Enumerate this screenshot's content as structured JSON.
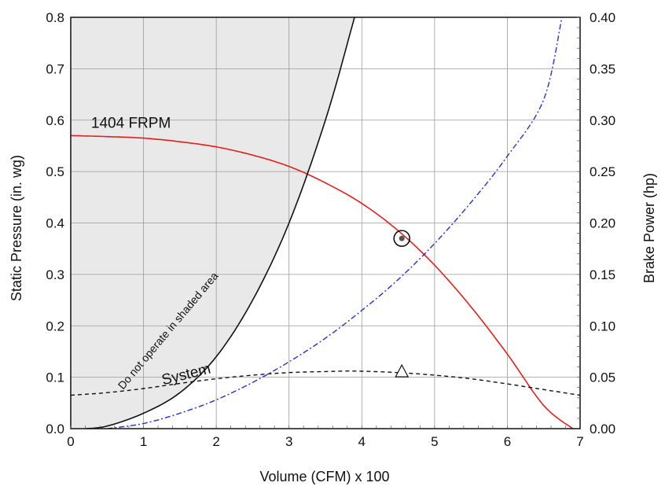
{
  "chart_data": {
    "type": "line",
    "title": "",
    "xlabel": "Volume (CFM) x 100",
    "ylabel": "Static Pressure (in. wg)",
    "y2label": "Brake Power (hp)",
    "xlim": [
      0,
      7
    ],
    "ylim": [
      0,
      0.8
    ],
    "y2lim": [
      0,
      0.4
    ],
    "grid": true,
    "x_ticks": [
      "0",
      "1",
      "2",
      "3",
      "4",
      "5",
      "6",
      "7"
    ],
    "y_ticks": [
      "0.0",
      "0.1",
      "0.2",
      "0.3",
      "0.4",
      "0.5",
      "0.6",
      "0.7",
      "0.8"
    ],
    "y2_ticks": [
      "0.00",
      "0.05",
      "0.10",
      "0.15",
      "0.20",
      "0.25",
      "0.30",
      "0.35",
      "0.40"
    ],
    "series": [
      {
        "name": "1404 FRPM",
        "axis": "left",
        "color": "#e0201b",
        "style": "solid",
        "x": [
          0,
          0.5,
          1,
          1.5,
          2,
          2.5,
          3,
          3.5,
          4,
          4.5,
          5,
          5.5,
          6,
          6.5,
          6.9
        ],
        "y": [
          0.57,
          0.568,
          0.565,
          0.558,
          0.548,
          0.532,
          0.51,
          0.478,
          0.438,
          0.385,
          0.318,
          0.237,
          0.145,
          0.045,
          0.0
        ]
      },
      {
        "name": "Brake Power",
        "axis": "right",
        "color": "#2233cc",
        "style": "dash-dot",
        "x": [
          0.5,
          1,
          1.5,
          2,
          2.5,
          3,
          3.5,
          4,
          4.5,
          5,
          5.5,
          6,
          6.5,
          6.75
        ],
        "y": [
          0.0,
          0.005,
          0.015,
          0.028,
          0.045,
          0.065,
          0.088,
          0.115,
          0.145,
          0.18,
          0.22,
          0.265,
          0.32,
          0.4
        ]
      },
      {
        "name": "System",
        "axis": "left",
        "color": "#111111",
        "style": "dashed",
        "x": [
          0,
          0.5,
          1,
          1.5,
          2,
          2.5,
          3,
          3.5,
          3.9,
          4.5,
          5,
          5.5,
          6,
          6.5,
          7
        ],
        "y": [
          0.065,
          0.07,
          0.078,
          0.088,
          0.097,
          0.104,
          0.109,
          0.111,
          0.112,
          0.109,
          0.104,
          0.097,
          0.087,
          0.076,
          0.065
        ]
      },
      {
        "name": "Do not operate boundary",
        "axis": "left",
        "color": "#111111",
        "style": "solid",
        "x": [
          0.2,
          0.5,
          1,
          1.5,
          2,
          2.5,
          3,
          3.5,
          3.9
        ],
        "y": [
          0.0,
          0.005,
          0.03,
          0.07,
          0.14,
          0.25,
          0.4,
          0.6,
          0.8
        ]
      }
    ],
    "operating_point": {
      "x": 4.55,
      "y": 0.37
    },
    "triangle_marker": {
      "x": 4.55,
      "y": 0.11
    },
    "annotations": [
      {
        "text": "1404  FRPM",
        "x": 0.28,
        "y": 0.585
      },
      {
        "text": "System",
        "x": 1.27,
        "y": 0.085
      },
      {
        "text": "Do  not  operate  in  shaded   area",
        "x": 0.72,
        "y": 0.075
      }
    ],
    "colors": {
      "shade": "#e9e9e9",
      "grid": "#9a9a9a",
      "frpm": "#e0201b",
      "power": "#2233cc",
      "system": "#111111"
    }
  }
}
